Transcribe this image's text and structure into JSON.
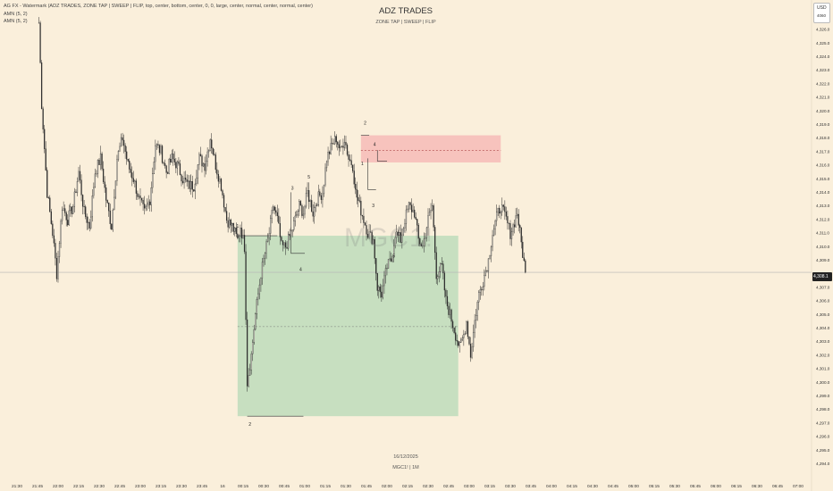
{
  "indicators": [
    "AG FX - Watermark (ADZ TRADES, ZONE TAP | SWEEP | FLIP, top, center, bottom, center, 0, 0, large, center, normal, center, normal, center)",
    "AMN (5, 2)",
    "AMN (5, 2)"
  ],
  "watermark": {
    "title": "ADZ TRADES",
    "subtitle": "ZONE TAP | SWEEP | FLIP",
    "date": "16/12/2025",
    "symbol_line": "MGC1! | 1M",
    "big_symbol": "MGC1!"
  },
  "price_axis": {
    "currency": "USD",
    "currency_type": "4060",
    "labels": [
      "4,326.0",
      "4,325.0",
      "4,324.0",
      "4,323.0",
      "4,322.0",
      "4,321.0",
      "4,320.0",
      "4,319.0",
      "4,318.0",
      "4,317.0",
      "4,316.0",
      "4,315.0",
      "4,314.0",
      "4,313.0",
      "4,312.0",
      "4,311.0",
      "4,310.0",
      "4,309.0",
      "4,307.0",
      "4,306.0",
      "4,305.0",
      "4,304.0",
      "4,303.0",
      "4,302.0",
      "4,301.0",
      "4,300.0",
      "4,299.0",
      "4,298.0",
      "4,297.0",
      "4,296.0",
      "4,295.0",
      "4,294.0"
    ],
    "current_price": "4,308.1"
  },
  "time_axis": {
    "labels": [
      "21:30",
      "21:45",
      "22:00",
      "22:15",
      "22:30",
      "22:45",
      "23:00",
      "23:15",
      "23:30",
      "23:45",
      "16",
      "00:15",
      "00:30",
      "00:45",
      "01:00",
      "01:15",
      "01:30",
      "01:45",
      "02:00",
      "02:15",
      "02:30",
      "02:45",
      "03:00",
      "03:15",
      "03:30",
      "03:45",
      "04:00",
      "04:15",
      "04:30",
      "04:45",
      "05:00",
      "05:15",
      "05:30",
      "05:45",
      "06:00",
      "06:15",
      "06:30",
      "06:45",
      "07:00"
    ]
  },
  "colors": {
    "background": "#faefdb",
    "candle": "#2b2b2b",
    "demand_zone": "#c7dfc0",
    "supply_zone": "#f7c3bd",
    "price_line": "#b5b5b5"
  },
  "chart_data": {
    "type": "candlestick",
    "ylim": [
      4293.5,
      4327.0
    ],
    "close_points": [
      [
        "21:46",
        4326.5
      ],
      [
        "21:48",
        4320.5
      ],
      [
        "21:52",
        4314
      ],
      [
        "21:56",
        4311
      ],
      [
        "21:59",
        4308
      ],
      [
        "22:03",
        4313
      ],
      [
        "22:07",
        4312
      ],
      [
        "22:11",
        4313
      ],
      [
        "22:15",
        4315.5
      ],
      [
        "22:19",
        4312.5
      ],
      [
        "22:23",
        4311.5
      ],
      [
        "22:27",
        4315.5
      ],
      [
        "22:31",
        4316.5
      ],
      [
        "22:35",
        4313.5
      ],
      [
        "22:39",
        4311.5
      ],
      [
        "22:43",
        4316.5
      ],
      [
        "22:47",
        4318
      ],
      [
        "22:51",
        4316
      ],
      [
        "22:55",
        4315
      ],
      [
        "22:59",
        4313.5
      ],
      [
        "23:03",
        4312.5
      ],
      [
        "23:07",
        4313.5
      ],
      [
        "23:11",
        4317.5
      ],
      [
        "23:15",
        4317
      ],
      [
        "23:19",
        4315.5
      ],
      [
        "23:23",
        4316.5
      ],
      [
        "23:27",
        4316
      ],
      [
        "23:31",
        4315
      ],
      [
        "23:35",
        4314.5
      ],
      [
        "23:39",
        4314.5
      ],
      [
        "23:43",
        4316.5
      ],
      [
        "23:47",
        4316
      ],
      [
        "23:51",
        4318
      ],
      [
        "23:55",
        4316
      ],
      [
        "23:59",
        4314.5
      ],
      [
        "00:03",
        4312
      ],
      [
        "00:07",
        4311.5
      ],
      [
        "00:11",
        4310.5
      ],
      [
        "00:13",
        4311.5
      ],
      [
        "00:16",
        4310
      ],
      [
        "00:18",
        4300
      ],
      [
        "00:21",
        4302
      ],
      [
        "00:24",
        4305
      ],
      [
        "00:28",
        4308
      ],
      [
        "00:31",
        4309.5
      ],
      [
        "00:34",
        4311
      ],
      [
        "00:37",
        4313
      ],
      [
        "00:40",
        4312
      ],
      [
        "00:43",
        4310
      ],
      [
        "00:46",
        4310
      ],
      [
        "00:50",
        4311
      ],
      [
        "00:53",
        4312
      ],
      [
        "00:56",
        4313
      ],
      [
        "00:59",
        4312.5
      ],
      [
        "01:02",
        4314
      ],
      [
        "01:06",
        4312.5
      ],
      [
        "01:09",
        4313.5
      ],
      [
        "01:13",
        4314
      ],
      [
        "01:16",
        4316.5
      ],
      [
        "01:20",
        4317.5
      ],
      [
        "01:23",
        4318
      ],
      [
        "01:26",
        4317
      ],
      [
        "01:29",
        4318
      ],
      [
        "01:32",
        4316.5
      ],
      [
        "01:35",
        4316
      ],
      [
        "01:37",
        4314
      ],
      [
        "01:40",
        4313
      ],
      [
        "01:43",
        4312
      ],
      [
        "01:46",
        4311
      ],
      [
        "01:50",
        4310.5
      ],
      [
        "01:53",
        4307
      ],
      [
        "01:56",
        4306.5
      ],
      [
        "02:00",
        4308.5
      ],
      [
        "02:03",
        4309
      ],
      [
        "02:06",
        4311
      ],
      [
        "02:10",
        4310.5
      ],
      [
        "02:13",
        4312
      ],
      [
        "02:16",
        4313
      ],
      [
        "02:20",
        4312.5
      ],
      [
        "02:23",
        4310.5
      ],
      [
        "02:26",
        4310
      ],
      [
        "02:30",
        4312
      ],
      [
        "02:33",
        4313
      ],
      [
        "02:36",
        4308
      ],
      [
        "02:40",
        4308.5
      ],
      [
        "02:43",
        4306
      ],
      [
        "02:46",
        4305
      ],
      [
        "02:50",
        4303.5
      ],
      [
        "02:53",
        4302.5
      ],
      [
        "02:56",
        4303.5
      ],
      [
        "02:58",
        4304.5
      ],
      [
        "03:01",
        4302
      ],
      [
        "03:04",
        4304.5
      ],
      [
        "03:07",
        4306.5
      ],
      [
        "03:10",
        4307.5
      ],
      [
        "03:14",
        4309
      ],
      [
        "03:17",
        4311
      ],
      [
        "03:21",
        4312.5
      ],
      [
        "03:23",
        4313
      ],
      [
        "03:27",
        4312
      ],
      [
        "03:30",
        4311
      ],
      [
        "03:32",
        4311.5
      ],
      [
        "03:35",
        4312.5
      ],
      [
        "03:37",
        4311
      ],
      [
        "03:39",
        4309.5
      ],
      [
        "03:41",
        4308.1
      ]
    ],
    "demand_zone": {
      "from": "00:11",
      "to": "02:52",
      "high": 4310.8,
      "low": 4297.5,
      "mid": 4304.1
    },
    "supply_zone": {
      "from": "01:41",
      "to": "03:23",
      "high": 4318.2,
      "low": 4316.2,
      "mid": 4317.1
    },
    "swing_labels": [
      {
        "text": "1",
        "t": "00:11",
        "p": 4311.4
      },
      {
        "text": "2",
        "t": "00:20",
        "p": 4296.8
      },
      {
        "text": "3",
        "t": "00:51",
        "p": 4314.2
      },
      {
        "text": "4",
        "t": "00:57",
        "p": 4308.2
      },
      {
        "text": "5",
        "t": "01:03",
        "p": 4315.0
      },
      {
        "text": "2",
        "t": "01:44",
        "p": 4319.0
      },
      {
        "text": "1",
        "t": "01:42",
        "p": 4316.0
      },
      {
        "text": "4",
        "t": "01:51",
        "p": 4317.4
      },
      {
        "text": "3",
        "t": "01:50",
        "p": 4312.9
      },
      {
        "text": "5",
        "t": "02:05",
        "p": 4309.2
      }
    ],
    "current_price": 4308.1
  }
}
